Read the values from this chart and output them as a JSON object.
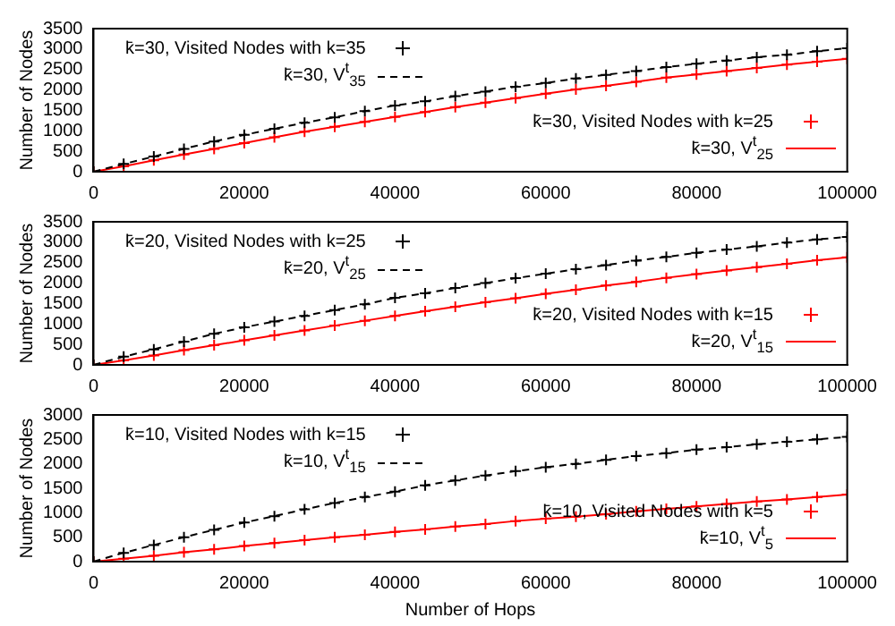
{
  "chart_data": [
    {
      "type": "scatter",
      "ylabel": "Number of Nodes",
      "xlim": [
        0,
        100000
      ],
      "xticks": [
        0,
        20000,
        40000,
        60000,
        80000,
        100000
      ],
      "ylim": [
        0,
        3500
      ],
      "yticks": [
        0,
        500,
        1000,
        1500,
        2000,
        2500,
        3000,
        3500
      ],
      "grid": false,
      "legend": "bottom right",
      "x": [
        0,
        4000,
        8000,
        12000,
        16000,
        20000,
        24000,
        28000,
        32000,
        36000,
        40000,
        44000,
        48000,
        52000,
        56000,
        60000,
        64000,
        68000,
        72000,
        76000,
        80000,
        84000,
        88000,
        92000,
        96000,
        100000
      ],
      "series": [
        {
          "name": "k̄=30, Visited Nodes with k=35",
          "type": "scatter",
          "marker": "cross",
          "color": "#000000",
          "values": [
            0,
            190,
            370,
            560,
            740,
            900,
            1050,
            1200,
            1330,
            1480,
            1620,
            1720,
            1850,
            1960,
            2080,
            2170,
            2280,
            2370,
            2460,
            2560,
            2640,
            2720,
            2800,
            2860,
            2950,
            3020
          ]
        },
        {
          "name": "k̄=30, V$^{t}$$_{35}$",
          "type": "line",
          "marker": "none",
          "line_style": "dashed",
          "color": "#000000",
          "values": [
            0,
            190,
            370,
            560,
            740,
            900,
            1050,
            1200,
            1330,
            1480,
            1620,
            1720,
            1850,
            1960,
            2080,
            2170,
            2280,
            2370,
            2460,
            2560,
            2640,
            2720,
            2800,
            2860,
            2950,
            3020
          ]
        },
        {
          "name": "k̄=30, Visited Nodes with k=25",
          "type": "scatter",
          "marker": "cross",
          "color": "#ff0000",
          "values": [
            0,
            130,
            280,
            420,
            560,
            700,
            840,
            980,
            1100,
            1220,
            1340,
            1460,
            1580,
            1690,
            1800,
            1910,
            2010,
            2100,
            2200,
            2300,
            2380,
            2460,
            2540,
            2620,
            2690,
            2760
          ]
        },
        {
          "name": "k̄=30, V$^{t}$$_{25}$",
          "type": "line",
          "marker": "none",
          "line_style": "solid",
          "color": "#ff0000",
          "values": [
            0,
            130,
            280,
            420,
            560,
            700,
            840,
            980,
            1100,
            1220,
            1340,
            1460,
            1580,
            1690,
            1800,
            1910,
            2010,
            2100,
            2200,
            2300,
            2380,
            2460,
            2540,
            2620,
            2690,
            2760
          ]
        }
      ]
    },
    {
      "type": "scatter",
      "ylabel": "Number of Nodes",
      "xlim": [
        0,
        100000
      ],
      "xticks": [
        0,
        20000,
        40000,
        60000,
        80000,
        100000
      ],
      "ylim": [
        0,
        3500
      ],
      "yticks": [
        0,
        500,
        1000,
        1500,
        2000,
        2500,
        3000,
        3500
      ],
      "grid": false,
      "legend": "bottom right",
      "x": [
        0,
        4000,
        8000,
        12000,
        16000,
        20000,
        24000,
        28000,
        32000,
        36000,
        40000,
        44000,
        48000,
        52000,
        56000,
        60000,
        64000,
        68000,
        72000,
        76000,
        80000,
        84000,
        88000,
        92000,
        96000,
        100000
      ],
      "series": [
        {
          "name": "k̄=20, Visited Nodes with k=25",
          "type": "scatter",
          "marker": "cross",
          "color": "#000000",
          "values": [
            0,
            200,
            380,
            570,
            760,
            920,
            1060,
            1200,
            1340,
            1480,
            1640,
            1750,
            1880,
            2000,
            2120,
            2230,
            2340,
            2440,
            2550,
            2640,
            2740,
            2820,
            2900,
            2990,
            3070,
            3130
          ]
        },
        {
          "name": "k̄=20, V$^{t}$$_{25}$",
          "type": "line",
          "marker": "none",
          "line_style": "dashed",
          "color": "#000000",
          "values": [
            0,
            200,
            380,
            570,
            760,
            920,
            1060,
            1200,
            1340,
            1480,
            1640,
            1750,
            1880,
            2000,
            2120,
            2230,
            2340,
            2440,
            2550,
            2640,
            2740,
            2820,
            2900,
            2990,
            3070,
            3130
          ]
        },
        {
          "name": "k̄=20, Visited Nodes with k=15",
          "type": "scatter",
          "marker": "cross",
          "color": "#ff0000",
          "values": [
            0,
            110,
            230,
            360,
            480,
            600,
            720,
            840,
            960,
            1080,
            1200,
            1310,
            1420,
            1530,
            1630,
            1740,
            1840,
            1940,
            2030,
            2130,
            2220,
            2310,
            2390,
            2470,
            2560,
            2630
          ]
        },
        {
          "name": "k̄=20, V$^{t}$$_{15}$",
          "type": "line",
          "marker": "none",
          "line_style": "solid",
          "color": "#ff0000",
          "values": [
            0,
            110,
            230,
            360,
            480,
            600,
            720,
            840,
            960,
            1080,
            1200,
            1310,
            1420,
            1530,
            1630,
            1740,
            1840,
            1940,
            2030,
            2130,
            2220,
            2310,
            2390,
            2470,
            2560,
            2630
          ]
        }
      ]
    },
    {
      "type": "scatter",
      "xlabel": "Number of Hops",
      "ylabel": "Number of Nodes",
      "xlim": [
        0,
        100000
      ],
      "xticks": [
        0,
        20000,
        40000,
        60000,
        80000,
        100000
      ],
      "ylim": [
        0,
        3000
      ],
      "yticks": [
        0,
        500,
        1000,
        1500,
        2000,
        2500,
        3000
      ],
      "grid": false,
      "legend": "bottom right",
      "x": [
        0,
        4000,
        8000,
        12000,
        16000,
        20000,
        24000,
        28000,
        32000,
        36000,
        40000,
        44000,
        48000,
        52000,
        56000,
        60000,
        64000,
        68000,
        72000,
        76000,
        80000,
        84000,
        88000,
        92000,
        96000,
        100000
      ],
      "series": [
        {
          "name": "k̄=10, Visited Nodes with k=15",
          "type": "scatter",
          "marker": "cross",
          "color": "#000000",
          "values": [
            0,
            180,
            340,
            500,
            650,
            800,
            930,
            1070,
            1200,
            1320,
            1430,
            1560,
            1660,
            1760,
            1850,
            1930,
            2000,
            2080,
            2160,
            2220,
            2290,
            2340,
            2400,
            2450,
            2500,
            2550
          ]
        },
        {
          "name": "k̄=10, V$^{t}$$_{15}$",
          "type": "line",
          "marker": "none",
          "line_style": "dashed",
          "color": "#000000",
          "values": [
            0,
            180,
            340,
            500,
            650,
            800,
            930,
            1070,
            1200,
            1320,
            1430,
            1560,
            1660,
            1760,
            1850,
            1930,
            2000,
            2080,
            2160,
            2220,
            2290,
            2340,
            2400,
            2450,
            2500,
            2550
          ]
        },
        {
          "name": "k̄=10, Visited Nodes with k=5",
          "type": "scatter",
          "marker": "cross",
          "color": "#ff0000",
          "values": [
            0,
            60,
            120,
            190,
            250,
            320,
            380,
            440,
            500,
            550,
            610,
            660,
            720,
            770,
            830,
            880,
            920,
            970,
            1030,
            1080,
            1130,
            1180,
            1230,
            1270,
            1320,
            1370
          ]
        },
        {
          "name": "k̄=10, V$^{t}$$_{5}$",
          "type": "line",
          "marker": "none",
          "line_style": "solid",
          "color": "#ff0000",
          "values": [
            0,
            60,
            120,
            190,
            250,
            320,
            380,
            440,
            500,
            550,
            610,
            660,
            720,
            770,
            830,
            880,
            920,
            970,
            1030,
            1080,
            1130,
            1180,
            1230,
            1270,
            1320,
            1370
          ]
        }
      ]
    }
  ]
}
